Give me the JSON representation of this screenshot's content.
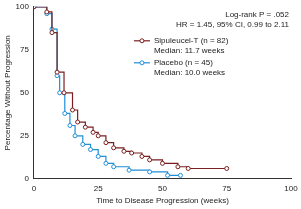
{
  "chart_data": {
    "type": "line",
    "x_label": "Time to Disease Progression (weeks)",
    "y_label": "Percentage Without Progression",
    "annotations": [
      "Log-rank P = .052",
      "HR = 1.45, 95% CI, 0.99 to 2.11"
    ],
    "series": [
      {
        "name": "Sipuleucel-T (n = 82)",
        "median_text": "Median: 11.7 weeks",
        "color": "#7a1f1f",
        "marker": "circle",
        "line_style": "step",
        "x": [
          0,
          5,
          7,
          9,
          11.7,
          15,
          17,
          20,
          23,
          25,
          28,
          31,
          35,
          38,
          42,
          45,
          50,
          56,
          60,
          75
        ],
        "values": [
          100,
          97,
          85,
          62,
          50,
          40,
          33,
          30,
          27,
          25,
          21,
          18,
          16,
          15,
          13,
          11,
          9,
          7,
          6,
          6
        ]
      },
      {
        "name": "Placebo (n = 45)",
        "median_text": "Median: 10.0 weeks",
        "color": "#1f8fd8",
        "marker": "circle",
        "line_style": "step",
        "x": [
          0,
          5,
          7,
          9,
          10,
          12,
          14,
          16,
          19,
          22,
          25,
          28,
          31,
          37,
          45,
          52,
          57
        ],
        "values": [
          100,
          96,
          87,
          60,
          50,
          38,
          31,
          25,
          20,
          17,
          13,
          9,
          7,
          5,
          4,
          2,
          2
        ]
      }
    ],
    "xlim": [
      0,
      100
    ],
    "xticks": [
      0,
      25,
      50,
      75,
      100
    ],
    "ylim": [
      0,
      100
    ],
    "yticks": [
      0,
      25,
      50,
      75,
      100
    ],
    "grid": false
  }
}
